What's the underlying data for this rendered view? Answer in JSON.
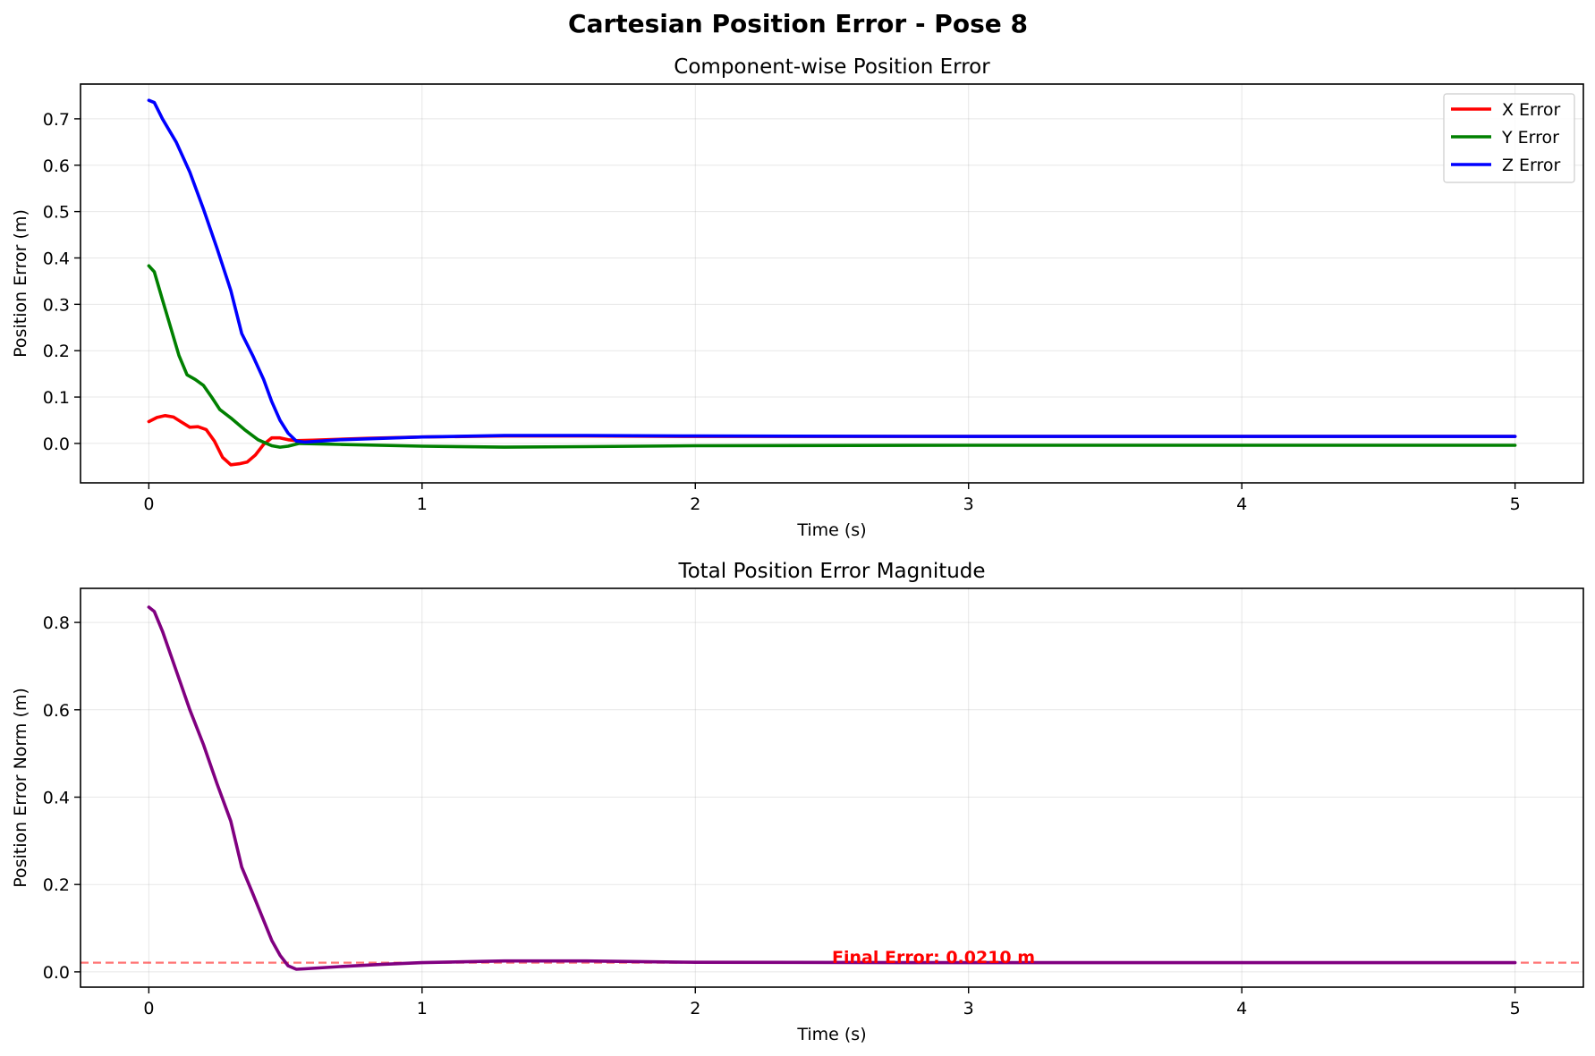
{
  "figure": {
    "suptitle": "Cartesian Position Error - Pose 8"
  },
  "chart_data": [
    {
      "type": "line",
      "title": "Component-wise Position Error",
      "xlabel": "Time (s)",
      "ylabel": "Position Error (m)",
      "xlim": [
        -0.25,
        5.25
      ],
      "ylim": [
        -0.085,
        0.775
      ],
      "xticks": [
        0,
        1,
        2,
        3,
        4,
        5
      ],
      "yticks": [
        0.0,
        0.1,
        0.2,
        0.3,
        0.4,
        0.5,
        0.6,
        0.7
      ],
      "grid": true,
      "legend_position": "upper right",
      "series": [
        {
          "name": "X Error",
          "color": "#ff0000",
          "x": [
            0,
            0.03,
            0.06,
            0.09,
            0.12,
            0.15,
            0.18,
            0.21,
            0.24,
            0.27,
            0.3,
            0.33,
            0.36,
            0.39,
            0.42,
            0.45,
            0.48,
            0.51,
            0.54,
            0.6,
            0.8,
            1.0,
            1.3,
            1.6,
            2.0,
            3.0,
            4.0,
            5.0
          ],
          "y": [
            0.047,
            0.056,
            0.06,
            0.057,
            0.046,
            0.035,
            0.036,
            0.03,
            0.005,
            -0.03,
            -0.046,
            -0.044,
            -0.04,
            -0.025,
            -0.002,
            0.012,
            0.012,
            0.008,
            0.006,
            0.007,
            0.011,
            0.014,
            0.016,
            0.016,
            0.015,
            0.015,
            0.015,
            0.015
          ]
        },
        {
          "name": "Y Error",
          "color": "#008000",
          "x": [
            0,
            0.02,
            0.05,
            0.08,
            0.11,
            0.14,
            0.17,
            0.2,
            0.23,
            0.26,
            0.3,
            0.35,
            0.4,
            0.45,
            0.48,
            0.51,
            0.55,
            0.7,
            1.0,
            1.3,
            1.6,
            2.0,
            3.0,
            4.0,
            5.0
          ],
          "y": [
            0.383,
            0.37,
            0.31,
            0.25,
            0.19,
            0.148,
            0.138,
            0.125,
            0.1,
            0.073,
            0.055,
            0.03,
            0.008,
            -0.005,
            -0.008,
            -0.006,
            0.0,
            -0.002,
            -0.006,
            -0.008,
            -0.007,
            -0.005,
            -0.004,
            -0.004,
            -0.004
          ]
        },
        {
          "name": "Z Error",
          "color": "#0000ff",
          "x": [
            0,
            0.02,
            0.05,
            0.1,
            0.15,
            0.2,
            0.25,
            0.3,
            0.34,
            0.38,
            0.42,
            0.45,
            0.48,
            0.51,
            0.54,
            0.57,
            0.7,
            1.0,
            1.3,
            1.6,
            2.0,
            3.0,
            4.0,
            5.0
          ],
          "y": [
            0.74,
            0.735,
            0.7,
            0.65,
            0.585,
            0.505,
            0.42,
            0.33,
            0.237,
            0.19,
            0.138,
            0.09,
            0.05,
            0.022,
            0.005,
            0.003,
            0.008,
            0.014,
            0.017,
            0.017,
            0.016,
            0.015,
            0.015,
            0.015
          ]
        }
      ]
    },
    {
      "type": "line",
      "title": "Total Position Error Magnitude",
      "xlabel": "Time (s)",
      "ylabel": "Position Error Norm (m)",
      "xlim": [
        -0.25,
        5.25
      ],
      "ylim": [
        -0.035,
        0.878
      ],
      "xticks": [
        0,
        1,
        2,
        3,
        4,
        5
      ],
      "yticks": [
        0.0,
        0.2,
        0.4,
        0.6,
        0.8
      ],
      "grid": true,
      "series": [
        {
          "color": "#800080",
          "x": [
            0,
            0.02,
            0.05,
            0.1,
            0.15,
            0.2,
            0.25,
            0.3,
            0.34,
            0.38,
            0.42,
            0.45,
            0.48,
            0.51,
            0.54,
            0.57,
            0.7,
            0.85,
            1.0,
            1.3,
            1.6,
            2.0,
            3.0,
            4.0,
            5.0
          ],
          "y": [
            0.835,
            0.825,
            0.78,
            0.69,
            0.6,
            0.52,
            0.43,
            0.345,
            0.24,
            0.18,
            0.118,
            0.072,
            0.038,
            0.014,
            0.006,
            0.007,
            0.012,
            0.017,
            0.021,
            0.025,
            0.025,
            0.022,
            0.021,
            0.021,
            0.021
          ]
        }
      ],
      "hline": {
        "y": 0.021,
        "color": "#ff0000",
        "style": "dashed"
      },
      "annotation": {
        "text": "Final Error: 0.0210 m",
        "x": 2.5,
        "y": 0.025,
        "color": "#ff0000"
      }
    }
  ]
}
